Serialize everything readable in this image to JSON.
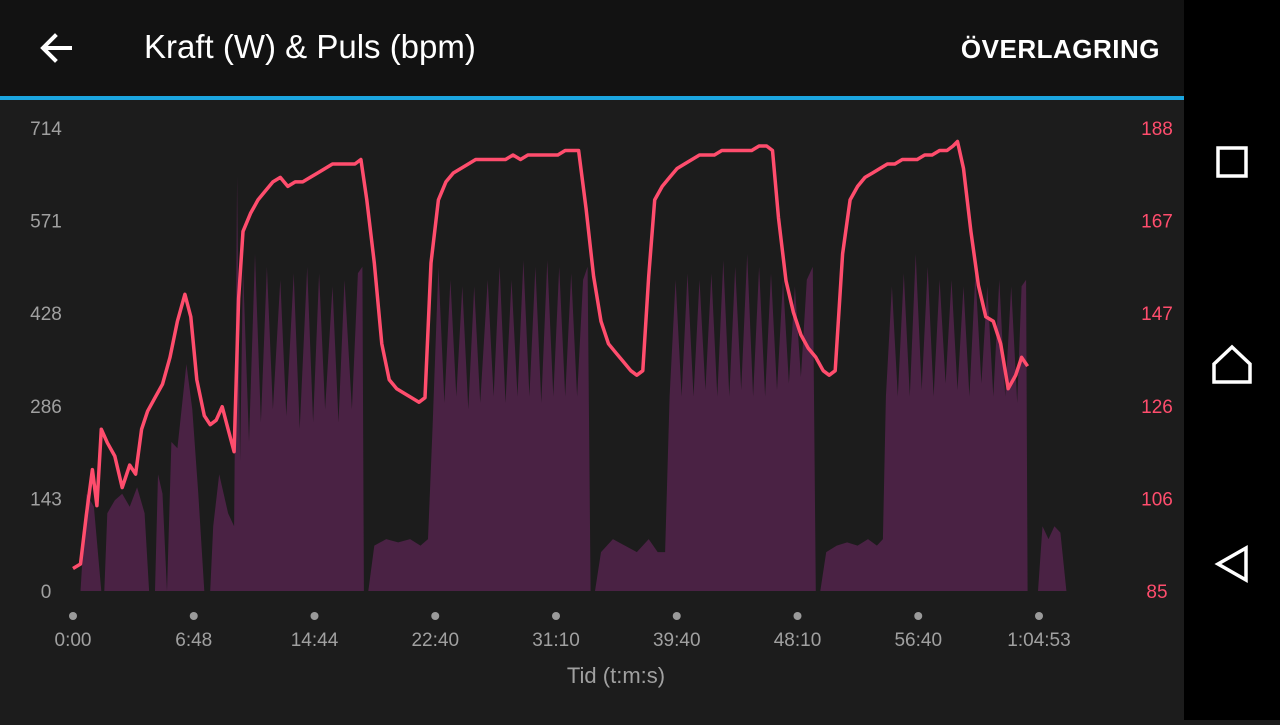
{
  "header": {
    "back_icon": "arrow-left-icon",
    "title": "Kraft (W) & Puls (bpm)",
    "overlay_label": "ÖVERLAGRING"
  },
  "colors": {
    "accent": "#1ba5e0",
    "power_fill": "#4a2244",
    "heart_rate_line": "#ff4d6d",
    "left_axis_text": "#a0a0a0",
    "right_axis_text": "#ff4d6d"
  },
  "chart_data": {
    "type": "area",
    "xlabel": "Tid (t:m:s)",
    "x_ticks": [
      "0:00",
      "6:48",
      "14:44",
      "22:40",
      "31:10",
      "39:40",
      "48:10",
      "56:40",
      "1:04:53"
    ],
    "xlim_minutes": [
      0,
      71
    ],
    "y_left_ticks": [
      "714",
      "571",
      "428",
      "286",
      "143",
      "0"
    ],
    "y_left_range": [
      0,
      714
    ],
    "y_right_ticks": [
      "188",
      "167",
      "147",
      "126",
      "106",
      "85"
    ],
    "y_right_range": [
      85,
      188
    ],
    "grid": false,
    "series": [
      {
        "type": "area",
        "axis": "left",
        "points": [
          [
            0,
            0
          ],
          [
            0.5,
            0
          ],
          [
            0.9,
            150
          ],
          [
            1.4,
            130
          ],
          [
            1.9,
            0
          ],
          [
            2.1,
            0
          ],
          [
            2.3,
            120
          ],
          [
            2.8,
            140
          ],
          [
            3.3,
            150
          ],
          [
            3.8,
            130
          ],
          [
            4.3,
            160
          ],
          [
            4.8,
            120
          ],
          [
            5.1,
            0
          ],
          [
            5.5,
            0
          ],
          [
            5.7,
            180
          ],
          [
            6.0,
            150
          ],
          [
            6.3,
            0
          ],
          [
            6.6,
            230
          ],
          [
            7.0,
            220
          ],
          [
            7.6,
            350
          ],
          [
            8.0,
            280
          ],
          [
            8.4,
            150
          ],
          [
            8.8,
            0
          ],
          [
            9.2,
            0
          ],
          [
            9.4,
            100
          ],
          [
            9.8,
            180
          ],
          [
            10.4,
            120
          ],
          [
            10.8,
            100
          ],
          [
            11.0,
            640
          ],
          [
            11.2,
            200
          ],
          [
            11.4,
            500
          ],
          [
            11.8,
            230
          ],
          [
            12.2,
            520
          ],
          [
            12.6,
            260
          ],
          [
            13.0,
            500
          ],
          [
            13.4,
            280
          ],
          [
            13.9,
            480
          ],
          [
            14.3,
            270
          ],
          [
            14.8,
            490
          ],
          [
            15.2,
            250
          ],
          [
            15.7,
            500
          ],
          [
            16.1,
            260
          ],
          [
            16.5,
            490
          ],
          [
            16.9,
            280
          ],
          [
            17.4,
            470
          ],
          [
            17.8,
            260
          ],
          [
            18.2,
            480
          ],
          [
            18.7,
            280
          ],
          [
            19.1,
            490
          ],
          [
            19.4,
            500
          ],
          [
            19.5,
            0
          ],
          [
            19.8,
            0
          ],
          [
            20.2,
            70
          ],
          [
            21.0,
            80
          ],
          [
            21.8,
            75
          ],
          [
            22.6,
            80
          ],
          [
            23.3,
            70
          ],
          [
            23.8,
            80
          ],
          [
            24.1,
            250
          ],
          [
            24.5,
            500
          ],
          [
            24.9,
            290
          ],
          [
            25.3,
            480
          ],
          [
            25.7,
            300
          ],
          [
            26.1,
            470
          ],
          [
            26.5,
            280
          ],
          [
            26.9,
            470
          ],
          [
            27.3,
            290
          ],
          [
            27.8,
            480
          ],
          [
            28.2,
            300
          ],
          [
            28.6,
            500
          ],
          [
            29.0,
            290
          ],
          [
            29.4,
            480
          ],
          [
            29.8,
            300
          ],
          [
            30.2,
            510
          ],
          [
            30.6,
            300
          ],
          [
            31.0,
            500
          ],
          [
            31.4,
            290
          ],
          [
            31.8,
            510
          ],
          [
            32.2,
            300
          ],
          [
            32.6,
            500
          ],
          [
            33.0,
            300
          ],
          [
            33.4,
            490
          ],
          [
            33.8,
            300
          ],
          [
            34.2,
            480
          ],
          [
            34.5,
            500
          ],
          [
            34.7,
            0
          ],
          [
            35.0,
            0
          ],
          [
            35.4,
            60
          ],
          [
            36.2,
            80
          ],
          [
            37.0,
            70
          ],
          [
            37.8,
            60
          ],
          [
            38.6,
            80
          ],
          [
            39.2,
            60
          ],
          [
            39.7,
            60
          ],
          [
            40.0,
            300
          ],
          [
            40.4,
            480
          ],
          [
            40.8,
            300
          ],
          [
            41.2,
            490
          ],
          [
            41.6,
            300
          ],
          [
            42.0,
            480
          ],
          [
            42.4,
            310
          ],
          [
            42.8,
            490
          ],
          [
            43.2,
            300
          ],
          [
            43.6,
            510
          ],
          [
            44.0,
            300
          ],
          [
            44.4,
            500
          ],
          [
            44.8,
            310
          ],
          [
            45.2,
            520
          ],
          [
            45.6,
            300
          ],
          [
            46.0,
            500
          ],
          [
            46.4,
            300
          ],
          [
            46.8,
            490
          ],
          [
            47.2,
            310
          ],
          [
            47.6,
            480
          ],
          [
            48.0,
            320
          ],
          [
            48.4,
            470
          ],
          [
            48.8,
            330
          ],
          [
            49.2,
            480
          ],
          [
            49.6,
            500
          ],
          [
            49.8,
            0
          ],
          [
            50.1,
            0
          ],
          [
            50.5,
            60
          ],
          [
            51.2,
            70
          ],
          [
            51.9,
            75
          ],
          [
            52.6,
            70
          ],
          [
            53.3,
            80
          ],
          [
            53.9,
            70
          ],
          [
            54.3,
            80
          ],
          [
            54.5,
            300
          ],
          [
            54.9,
            470
          ],
          [
            55.3,
            300
          ],
          [
            55.7,
            490
          ],
          [
            56.1,
            300
          ],
          [
            56.5,
            520
          ],
          [
            56.9,
            310
          ],
          [
            57.3,
            500
          ],
          [
            57.7,
            300
          ],
          [
            58.1,
            480
          ],
          [
            58.5,
            320
          ],
          [
            58.9,
            480
          ],
          [
            59.3,
            310
          ],
          [
            59.7,
            470
          ],
          [
            60.1,
            300
          ],
          [
            60.5,
            490
          ],
          [
            60.9,
            320
          ],
          [
            61.3,
            470
          ],
          [
            61.7,
            300
          ],
          [
            62.1,
            480
          ],
          [
            62.5,
            300
          ],
          [
            62.9,
            470
          ],
          [
            63.3,
            290
          ],
          [
            63.6,
            470
          ],
          [
            63.9,
            480
          ],
          [
            64.0,
            0
          ],
          [
            64.7,
            0
          ],
          [
            65.0,
            100
          ],
          [
            65.4,
            80
          ],
          [
            65.8,
            100
          ],
          [
            66.2,
            90
          ],
          [
            66.6,
            0
          ]
        ]
      },
      {
        "type": "line",
        "axis": "right",
        "points": [
          [
            0,
            90
          ],
          [
            0.5,
            91
          ],
          [
            0.9,
            102
          ],
          [
            1.3,
            112
          ],
          [
            1.6,
            104
          ],
          [
            1.9,
            121
          ],
          [
            2.3,
            118
          ],
          [
            2.8,
            115
          ],
          [
            3.3,
            108
          ],
          [
            3.8,
            113
          ],
          [
            4.2,
            111
          ],
          [
            4.6,
            121
          ],
          [
            5.0,
            125
          ],
          [
            5.5,
            128
          ],
          [
            6.0,
            131
          ],
          [
            6.5,
            137
          ],
          [
            7.0,
            145
          ],
          [
            7.5,
            151
          ],
          [
            7.9,
            146
          ],
          [
            8.3,
            132
          ],
          [
            8.8,
            124
          ],
          [
            9.2,
            122
          ],
          [
            9.6,
            123
          ],
          [
            10.0,
            126
          ],
          [
            10.4,
            121
          ],
          [
            10.8,
            116
          ],
          [
            11.1,
            150
          ],
          [
            11.4,
            165
          ],
          [
            11.9,
            169
          ],
          [
            12.4,
            172
          ],
          [
            12.9,
            174
          ],
          [
            13.4,
            176
          ],
          [
            13.9,
            177
          ],
          [
            14.4,
            175
          ],
          [
            14.9,
            176
          ],
          [
            15.4,
            176
          ],
          [
            15.9,
            177
          ],
          [
            16.4,
            178
          ],
          [
            16.9,
            179
          ],
          [
            17.4,
            180
          ],
          [
            17.9,
            180
          ],
          [
            18.4,
            180
          ],
          [
            18.9,
            180
          ],
          [
            19.3,
            181
          ],
          [
            19.7,
            172
          ],
          [
            20.2,
            158
          ],
          [
            20.7,
            140
          ],
          [
            21.2,
            132
          ],
          [
            21.7,
            130
          ],
          [
            22.2,
            129
          ],
          [
            22.7,
            128
          ],
          [
            23.2,
            127
          ],
          [
            23.6,
            128
          ],
          [
            24.0,
            158
          ],
          [
            24.5,
            172
          ],
          [
            25.0,
            176
          ],
          [
            25.5,
            178
          ],
          [
            26.0,
            179
          ],
          [
            26.5,
            180
          ],
          [
            27.0,
            181
          ],
          [
            27.5,
            181
          ],
          [
            28.0,
            181
          ],
          [
            28.5,
            181
          ],
          [
            29.0,
            181
          ],
          [
            29.5,
            182
          ],
          [
            30.0,
            181
          ],
          [
            30.5,
            182
          ],
          [
            31.0,
            182
          ],
          [
            31.5,
            182
          ],
          [
            32.0,
            182
          ],
          [
            32.5,
            182
          ],
          [
            33.0,
            183
          ],
          [
            33.5,
            183
          ],
          [
            33.9,
            183
          ],
          [
            34.4,
            170
          ],
          [
            34.9,
            155
          ],
          [
            35.4,
            145
          ],
          [
            35.9,
            140
          ],
          [
            36.4,
            138
          ],
          [
            36.9,
            136
          ],
          [
            37.4,
            134
          ],
          [
            37.8,
            133
          ],
          [
            38.2,
            134
          ],
          [
            38.6,
            155
          ],
          [
            39.0,
            172
          ],
          [
            39.5,
            175
          ],
          [
            40.0,
            177
          ],
          [
            40.5,
            179
          ],
          [
            41.0,
            180
          ],
          [
            41.5,
            181
          ],
          [
            42.0,
            182
          ],
          [
            42.5,
            182
          ],
          [
            43.0,
            182
          ],
          [
            43.5,
            183
          ],
          [
            44.0,
            183
          ],
          [
            44.5,
            183
          ],
          [
            45.0,
            183
          ],
          [
            45.5,
            183
          ],
          [
            46.0,
            184
          ],
          [
            46.5,
            184
          ],
          [
            46.9,
            183
          ],
          [
            47.3,
            168
          ],
          [
            47.8,
            154
          ],
          [
            48.3,
            147
          ],
          [
            48.8,
            142
          ],
          [
            49.3,
            139
          ],
          [
            49.8,
            137
          ],
          [
            50.3,
            134
          ],
          [
            50.7,
            133
          ],
          [
            51.1,
            134
          ],
          [
            51.6,
            160
          ],
          [
            52.1,
            172
          ],
          [
            52.6,
            175
          ],
          [
            53.1,
            177
          ],
          [
            53.6,
            178
          ],
          [
            54.1,
            179
          ],
          [
            54.6,
            180
          ],
          [
            55.1,
            180
          ],
          [
            55.6,
            181
          ],
          [
            56.1,
            181
          ],
          [
            56.6,
            181
          ],
          [
            57.1,
            182
          ],
          [
            57.6,
            182
          ],
          [
            58.1,
            183
          ],
          [
            58.6,
            183
          ],
          [
            59.0,
            184
          ],
          [
            59.3,
            185
          ],
          [
            59.7,
            179
          ],
          [
            60.2,
            165
          ],
          [
            60.7,
            153
          ],
          [
            61.2,
            146
          ],
          [
            61.7,
            145
          ],
          [
            62.2,
            140
          ],
          [
            62.7,
            130
          ],
          [
            63.2,
            133
          ],
          [
            63.6,
            137
          ],
          [
            64.0,
            135
          ]
        ]
      }
    ]
  }
}
